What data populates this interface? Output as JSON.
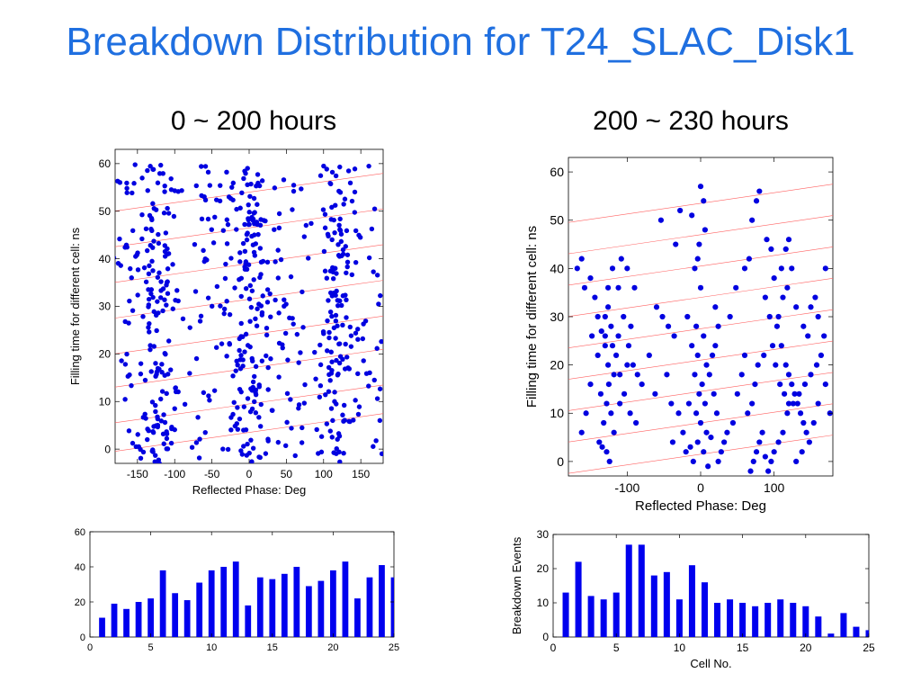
{
  "slide": {
    "title": "Breakdown Distribution for T24_SLAC_Disk1",
    "left_subtitle": "0 ~ 200 hours",
    "right_subtitle": "200 ~ 230 hours"
  },
  "chart_data": [
    {
      "type": "scatter",
      "panel": "top-left",
      "xlabel": "Reflected Phase: Deg",
      "ylabel": "Filling time for different cell: ns",
      "xlim": [
        -180,
        180
      ],
      "ylim": [
        -3,
        63
      ],
      "xticks": [
        -150,
        -100,
        -50,
        0,
        50,
        100,
        150
      ],
      "yticks": [
        0,
        10,
        20,
        30,
        40,
        50,
        60
      ],
      "clusters": [
        {
          "x": -125,
          "xs": 24,
          "n": 170
        },
        {
          "x": 0,
          "xs": 28,
          "n": 190
        },
        {
          "x": 120,
          "xs": 24,
          "n": 160
        },
        {
          "x": -165,
          "xs": 12,
          "n": 25
        },
        {
          "x": -55,
          "xs": 25,
          "n": 45
        },
        {
          "x": 60,
          "xs": 25,
          "n": 45
        },
        {
          "x": 170,
          "xs": 10,
          "n": 20
        }
      ],
      "yrange": [
        -3,
        60
      ],
      "seed": 17,
      "guide_lines": {
        "intercepts": [
          3.5,
          9.5,
          17,
          24,
          31.5,
          39,
          46.5,
          54
        ],
        "slope": 0.022
      },
      "marker_color": "#0000e0",
      "guide_color": "#ff6060"
    },
    {
      "type": "scatter",
      "panel": "top-right",
      "xlabel": "Reflected Phase: Deg",
      "ylabel": "Filling time for different cell: ns",
      "xlim": [
        -180,
        180
      ],
      "ylim": [
        -3,
        63
      ],
      "xticks": [
        -100,
        0,
        100
      ],
      "yticks": [
        0,
        10,
        20,
        30,
        40,
        50,
        60
      ],
      "points": [
        [
          -168,
          40
        ],
        [
          -162,
          42
        ],
        [
          -158,
          36
        ],
        [
          -150,
          38
        ],
        [
          -140,
          22
        ],
        [
          -135,
          27
        ],
        [
          -130,
          24
        ],
        [
          -126,
          20
        ],
        [
          -122,
          28
        ],
        [
          -118,
          18
        ],
        [
          -126,
          32
        ],
        [
          -130,
          30
        ],
        [
          -120,
          24
        ],
        [
          -125,
          16
        ],
        [
          -115,
          22
        ],
        [
          -110,
          18
        ],
        [
          -128,
          12
        ],
        [
          -122,
          10
        ],
        [
          -132,
          8
        ],
        [
          -118,
          6
        ],
        [
          -138,
          4
        ],
        [
          -128,
          2
        ],
        [
          -124,
          0
        ],
        [
          -134,
          3
        ],
        [
          -112,
          36
        ],
        [
          -105,
          30
        ],
        [
          -98,
          24
        ],
        [
          -92,
          20
        ],
        [
          -86,
          18
        ],
        [
          -80,
          16
        ],
        [
          -95,
          28
        ],
        [
          -90,
          36
        ],
        [
          -100,
          40
        ],
        [
          -108,
          42
        ],
        [
          -144,
          34
        ],
        [
          -150,
          16
        ],
        [
          -156,
          10
        ],
        [
          -162,
          6
        ],
        [
          -148,
          26
        ],
        [
          -136,
          14
        ],
        [
          -120,
          40
        ],
        [
          -126,
          36
        ],
        [
          -110,
          12
        ],
        [
          -104,
          14
        ],
        [
          -96,
          10
        ],
        [
          -88,
          8
        ],
        [
          -100,
          20
        ],
        [
          -112,
          26
        ],
        [
          -130,
          26
        ],
        [
          -140,
          30
        ],
        [
          -60,
          32
        ],
        [
          -52,
          30
        ],
        [
          -44,
          28
        ],
        [
          -36,
          26
        ],
        [
          -46,
          18
        ],
        [
          -40,
          12
        ],
        [
          -30,
          10
        ],
        [
          -24,
          6
        ],
        [
          -38,
          4
        ],
        [
          -20,
          2
        ],
        [
          -70,
          22
        ],
        [
          -62,
          14
        ],
        [
          -54,
          50
        ],
        [
          -34,
          45
        ],
        [
          -28,
          52
        ],
        [
          -12,
          51
        ],
        [
          -8,
          40
        ],
        [
          -4,
          42
        ],
        [
          0,
          57
        ],
        [
          4,
          54
        ],
        [
          -2,
          45
        ],
        [
          6,
          48
        ],
        [
          0,
          36
        ],
        [
          -6,
          28
        ],
        [
          4,
          26
        ],
        [
          -4,
          22
        ],
        [
          8,
          20
        ],
        [
          -8,
          18
        ],
        [
          2,
          16
        ],
        [
          -2,
          14
        ],
        [
          6,
          12
        ],
        [
          -6,
          10
        ],
        [
          0,
          8
        ],
        [
          8,
          6
        ],
        [
          -4,
          4
        ],
        [
          4,
          2
        ],
        [
          -10,
          0
        ],
        [
          10,
          -1
        ],
        [
          -14,
          3
        ],
        [
          14,
          5
        ],
        [
          12,
          18
        ],
        [
          16,
          22
        ],
        [
          20,
          24
        ],
        [
          24,
          28
        ],
        [
          18,
          14
        ],
        [
          22,
          10
        ],
        [
          -16,
          12
        ],
        [
          -12,
          24
        ],
        [
          -18,
          30
        ],
        [
          20,
          32
        ],
        [
          28,
          2
        ],
        [
          32,
          4
        ],
        [
          24,
          0
        ],
        [
          36,
          6
        ],
        [
          44,
          8
        ],
        [
          50,
          14
        ],
        [
          56,
          18
        ],
        [
          60,
          22
        ],
        [
          40,
          30
        ],
        [
          48,
          36
        ],
        [
          60,
          40
        ],
        [
          66,
          42
        ],
        [
          70,
          50
        ],
        [
          76,
          54
        ],
        [
          80,
          56
        ],
        [
          90,
          46
        ],
        [
          96,
          44
        ],
        [
          100,
          38
        ],
        [
          88,
          34
        ],
        [
          94,
          30
        ],
        [
          104,
          28
        ],
        [
          110,
          24
        ],
        [
          116,
          20
        ],
        [
          120,
          18
        ],
        [
          124,
          16
        ],
        [
          128,
          14
        ],
        [
          132,
          12
        ],
        [
          136,
          10
        ],
        [
          140,
          8
        ],
        [
          144,
          6
        ],
        [
          100,
          2
        ],
        [
          96,
          0
        ],
        [
          92,
          -2
        ],
        [
          88,
          1
        ],
        [
          106,
          4
        ],
        [
          112,
          6
        ],
        [
          118,
          10
        ],
        [
          126,
          12
        ],
        [
          134,
          14
        ],
        [
          142,
          16
        ],
        [
          150,
          18
        ],
        [
          158,
          20
        ],
        [
          164,
          22
        ],
        [
          170,
          16
        ],
        [
          176,
          10
        ],
        [
          160,
          12
        ],
        [
          154,
          8
        ],
        [
          148,
          4
        ],
        [
          138,
          2
        ],
        [
          130,
          0
        ],
        [
          108,
          16
        ],
        [
          114,
          14
        ],
        [
          120,
          12
        ],
        [
          102,
          20
        ],
        [
          98,
          24
        ],
        [
          106,
          30
        ],
        [
          112,
          34
        ],
        [
          118,
          36
        ],
        [
          124,
          40
        ],
        [
          130,
          32
        ],
        [
          80,
          4
        ],
        [
          76,
          2
        ],
        [
          72,
          0
        ],
        [
          68,
          -2
        ],
        [
          84,
          6
        ],
        [
          64,
          10
        ],
        [
          70,
          12
        ],
        [
          74,
          16
        ],
        [
          78,
          20
        ],
        [
          86,
          22
        ],
        [
          150,
          32
        ],
        [
          156,
          34
        ],
        [
          140,
          28
        ],
        [
          146,
          26
        ],
        [
          160,
          30
        ],
        [
          170,
          40
        ],
        [
          168,
          26
        ],
        [
          110,
          40
        ],
        [
          116,
          44
        ],
        [
          120,
          46
        ]
      ],
      "guide_lines": {
        "intercepts": [
          1.5,
          8,
          14.5,
          21,
          27.5,
          34,
          40.5,
          47,
          53.5
        ],
        "slope": 0.022
      },
      "marker_color": "#0000e0",
      "guide_color": "#ff6060"
    },
    {
      "type": "bar",
      "panel": "bottom-left",
      "xlim": [
        0,
        25
      ],
      "ylim": [
        0,
        60
      ],
      "xticks": [
        0,
        5,
        10,
        15,
        20,
        25
      ],
      "yticks": [
        0,
        20,
        40,
        60
      ],
      "categories": [
        1,
        2,
        3,
        4,
        5,
        6,
        7,
        8,
        9,
        10,
        11,
        12,
        13,
        14,
        15,
        16,
        17,
        18,
        19,
        20,
        21,
        22,
        23,
        24,
        25
      ],
      "values": [
        11,
        19,
        16,
        20,
        22,
        38,
        25,
        21,
        31,
        38,
        40,
        43,
        18,
        34,
        33,
        36,
        40,
        29,
        32,
        38,
        43,
        22,
        34,
        41,
        34
      ],
      "bar_color": "#0000ee"
    },
    {
      "type": "bar",
      "panel": "bottom-right",
      "xlabel": "Cell No.",
      "ylabel": "Breakdown Events",
      "xlim": [
        0,
        25
      ],
      "ylim": [
        0,
        30
      ],
      "xticks": [
        0,
        5,
        10,
        15,
        20,
        25
      ],
      "yticks": [
        0,
        10,
        20,
        30
      ],
      "categories": [
        1,
        2,
        3,
        4,
        5,
        6,
        7,
        8,
        9,
        10,
        11,
        12,
        13,
        14,
        15,
        16,
        17,
        18,
        19,
        20,
        21,
        22,
        23,
        24,
        25
      ],
      "values": [
        13,
        22,
        12,
        11,
        13,
        27,
        27,
        18,
        19,
        11,
        21,
        16,
        10,
        11,
        10,
        9,
        10,
        11,
        10,
        9,
        6,
        1,
        7,
        3,
        2
      ],
      "bar_color": "#0000ee"
    }
  ]
}
